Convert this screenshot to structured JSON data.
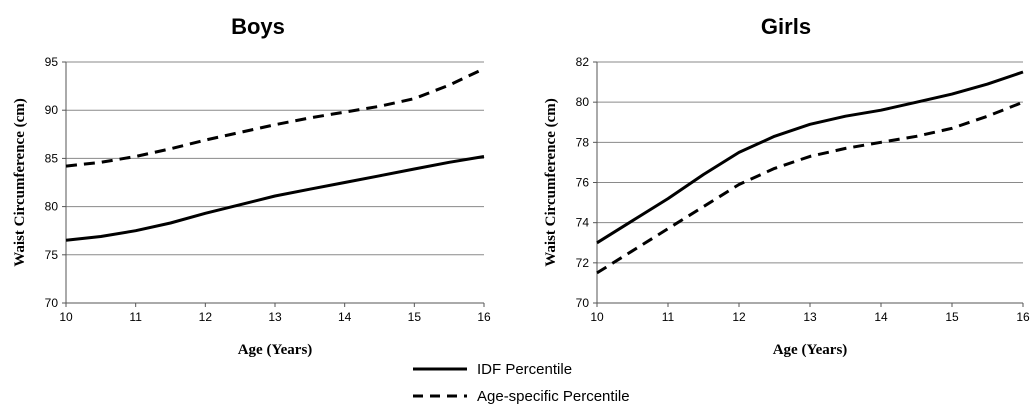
{
  "chart_data": [
    {
      "type": "line",
      "title": "Boys",
      "xlabel": "Age (Years)",
      "ylabel": "Waist Circumference (cm)",
      "xlim": [
        10,
        16
      ],
      "ylim": [
        70,
        95
      ],
      "xticks": [
        10,
        11,
        12,
        13,
        14,
        15,
        16
      ],
      "yticks": [
        70,
        75,
        80,
        85,
        90,
        95
      ],
      "grid": true,
      "series": [
        {
          "name": "IDF Percentile",
          "style": "solid",
          "x": [
            10,
            10.5,
            11,
            11.5,
            12,
            12.5,
            13,
            13.5,
            14,
            14.5,
            15,
            15.5,
            16
          ],
          "y": [
            76.5,
            76.9,
            77.5,
            78.3,
            79.3,
            80.2,
            81.1,
            81.8,
            82.5,
            83.2,
            83.9,
            84.6,
            85.2
          ]
        },
        {
          "name": "Age-specific Percentile",
          "style": "dashed",
          "x": [
            10,
            10.5,
            11,
            11.5,
            12,
            12.5,
            13,
            13.5,
            14,
            14.5,
            15,
            15.5,
            16
          ],
          "y": [
            84.2,
            84.6,
            85.2,
            86.0,
            86.9,
            87.7,
            88.5,
            89.2,
            89.8,
            90.4,
            91.2,
            92.6,
            94.3
          ]
        }
      ]
    },
    {
      "type": "line",
      "title": "Girls",
      "xlabel": "Age (Years)",
      "ylabel": "Waist Circumference (cm)",
      "xlim": [
        10,
        16
      ],
      "ylim": [
        70,
        82
      ],
      "xticks": [
        10,
        11,
        12,
        13,
        14,
        15,
        16
      ],
      "yticks": [
        70,
        72,
        74,
        76,
        78,
        80,
        82
      ],
      "grid": true,
      "series": [
        {
          "name": "IDF Percentile",
          "style": "solid",
          "x": [
            10,
            10.5,
            11,
            11.5,
            12,
            12.5,
            13,
            13.5,
            14,
            14.5,
            15,
            15.5,
            16
          ],
          "y": [
            73.0,
            74.1,
            75.2,
            76.4,
            77.5,
            78.3,
            78.9,
            79.3,
            79.6,
            80.0,
            80.4,
            80.9,
            81.5
          ]
        },
        {
          "name": "Age-specific Percentile",
          "style": "dashed",
          "x": [
            10,
            10.5,
            11,
            11.5,
            12,
            12.5,
            13,
            13.5,
            14,
            14.5,
            15,
            15.5,
            16
          ],
          "y": [
            71.5,
            72.6,
            73.7,
            74.8,
            75.9,
            76.7,
            77.3,
            77.7,
            78.0,
            78.3,
            78.7,
            79.3,
            80.0
          ]
        }
      ]
    }
  ],
  "legend": {
    "placement": "bottom-center",
    "items": [
      {
        "label": "IDF Percentile",
        "style": "solid"
      },
      {
        "label": "Age-specific Percentile",
        "style": "dashed"
      }
    ]
  }
}
